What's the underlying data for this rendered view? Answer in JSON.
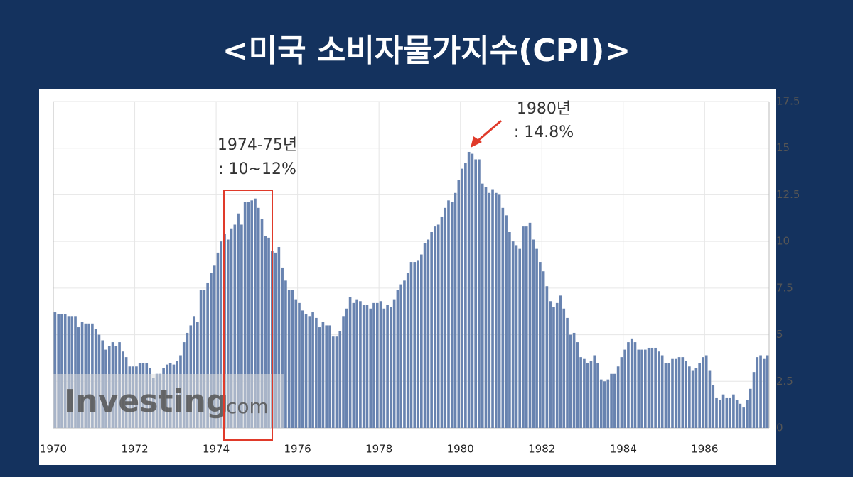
{
  "chart_data": {
    "type": "bar",
    "title": "<미국 소비자물가지수(CPI)>",
    "annotations": [
      "1974-75년",
      ": 10~12%",
      "1980년",
      ": 14.8%"
    ],
    "watermark": {
      "brand": "Investing",
      "suffix": "com"
    },
    "categories": [
      "1970",
      null,
      null,
      null,
      null,
      null,
      null,
      null,
      null,
      null,
      null,
      null,
      null,
      null,
      null,
      null,
      null,
      null,
      null,
      null,
      null,
      null,
      null,
      null,
      "1972",
      null,
      null,
      null,
      null,
      null,
      null,
      null,
      null,
      null,
      null,
      null,
      null,
      null,
      null,
      null,
      null,
      null,
      null,
      null,
      null,
      null,
      null,
      null,
      "1974",
      null,
      null,
      null,
      null,
      null,
      null,
      null,
      null,
      null,
      null,
      null,
      null,
      null,
      null,
      null,
      null,
      null,
      null,
      null,
      null,
      null,
      null,
      null,
      "1976",
      null,
      null,
      null,
      null,
      null,
      null,
      null,
      null,
      null,
      null,
      null,
      null,
      null,
      null,
      null,
      null,
      null,
      null,
      null,
      null,
      null,
      null,
      null,
      "1978",
      null,
      null,
      null,
      null,
      null,
      null,
      null,
      null,
      null,
      null,
      null,
      null,
      null,
      null,
      null,
      null,
      null,
      null,
      null,
      null,
      null,
      null,
      null,
      "1980",
      null,
      null,
      null,
      null,
      null,
      null,
      null,
      null,
      null,
      null,
      null,
      null,
      null,
      null,
      null,
      null,
      null,
      null,
      null,
      null,
      null,
      null,
      null,
      "1982",
      null,
      null,
      null,
      null,
      null,
      null,
      null,
      null,
      null,
      null,
      null,
      null,
      null,
      null,
      null,
      null,
      null,
      null,
      null,
      null,
      null,
      null,
      null,
      "1984",
      null,
      null,
      null,
      null,
      null,
      null,
      null,
      null,
      null,
      null,
      null,
      null,
      null,
      null,
      null,
      null,
      null,
      null,
      null,
      null,
      null,
      null,
      null,
      "1986",
      null,
      null,
      null,
      null,
      null,
      null,
      null,
      null,
      null,
      null,
      null,
      null,
      null,
      null,
      null,
      null,
      null,
      null
    ],
    "values": [
      6.2,
      6.1,
      6.1,
      6.1,
      6.0,
      6.0,
      6.0,
      5.4,
      5.7,
      5.6,
      5.6,
      5.6,
      5.3,
      5.0,
      4.7,
      4.2,
      4.4,
      4.6,
      4.4,
      4.6,
      4.1,
      3.8,
      3.3,
      3.3,
      3.3,
      3.5,
      3.5,
      3.5,
      3.2,
      2.7,
      2.9,
      2.9,
      3.2,
      3.4,
      3.5,
      3.4,
      3.6,
      3.9,
      4.6,
      5.1,
      5.5,
      6.0,
      5.7,
      7.4,
      7.4,
      7.8,
      8.3,
      8.7,
      9.4,
      10.0,
      10.4,
      10.1,
      10.7,
      10.9,
      11.5,
      10.9,
      12.1,
      12.1,
      12.2,
      12.3,
      11.8,
      11.2,
      10.3,
      10.2,
      9.5,
      9.4,
      9.7,
      8.6,
      7.9,
      7.4,
      7.4,
      6.9,
      6.7,
      6.3,
      6.1,
      6.0,
      6.2,
      5.9,
      5.4,
      5.7,
      5.5,
      5.5,
      4.9,
      4.9,
      5.2,
      6.0,
      6.4,
      7.0,
      6.7,
      6.9,
      6.8,
      6.6,
      6.6,
      6.4,
      6.7,
      6.7,
      6.8,
      6.4,
      6.6,
      6.5,
      6.9,
      7.4,
      7.7,
      7.9,
      8.3,
      8.9,
      8.9,
      9.0,
      9.3,
      9.9,
      10.1,
      10.5,
      10.8,
      10.9,
      11.3,
      11.8,
      12.2,
      12.1,
      12.6,
      13.3,
      13.9,
      14.2,
      14.8,
      14.7,
      14.4,
      14.4,
      13.1,
      12.9,
      12.6,
      12.8,
      12.6,
      12.5,
      11.8,
      11.4,
      10.5,
      10.0,
      9.8,
      9.6,
      10.8,
      10.8,
      11.0,
      10.1,
      9.6,
      8.9,
      8.4,
      7.6,
      6.8,
      6.5,
      6.7,
      7.1,
      6.4,
      5.9,
      5.0,
      5.1,
      4.6,
      3.8,
      3.7,
      3.5,
      3.6,
      3.9,
      3.5,
      2.6,
      2.5,
      2.6,
      2.9,
      2.9,
      3.3,
      3.8,
      4.2,
      4.6,
      4.8,
      4.6,
      4.2,
      4.2,
      4.2,
      4.3,
      4.3,
      4.3,
      4.1,
      3.9,
      3.5,
      3.5,
      3.7,
      3.7,
      3.8,
      3.8,
      3.6,
      3.3,
      3.1,
      3.2,
      3.5,
      3.8,
      3.9,
      3.1,
      2.3,
      1.6,
      1.5,
      1.8,
      1.6,
      1.6,
      1.8,
      1.5,
      1.3,
      1.1,
      1.5,
      2.1,
      3.0,
      3.8,
      3.9,
      3.7,
      3.9
    ],
    "color": "#6883b0",
    "ylim": [
      0,
      17.5
    ],
    "yticks": [
      0,
      2.5,
      5,
      7.5,
      10,
      12.5,
      15,
      17.5
    ],
    "grid": true,
    "y_axis_side": "right"
  }
}
